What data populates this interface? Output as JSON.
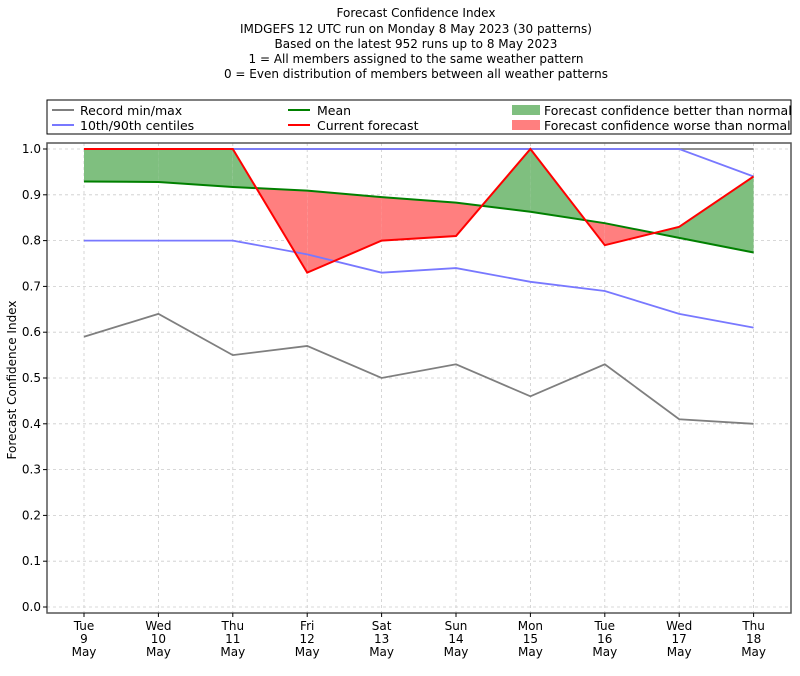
{
  "chart_data": {
    "type": "line",
    "title": "Forecast Confidence Index",
    "subtitle_lines": [
      "IMDGEFS 12 UTC run on Monday 8 May 2023 (30 patterns)",
      "Based on the latest 952 runs up to 8 May 2023",
      "1 = All members assigned to the same weather pattern",
      "0 = Even distribution of members between all weather patterns"
    ],
    "xlabel": "",
    "ylabel": "Forecast Confidence Index",
    "ylim": [
      0.0,
      1.0
    ],
    "yticks": [
      "0.0",
      "0.1",
      "0.2",
      "0.3",
      "0.4",
      "0.5",
      "0.6",
      "0.7",
      "0.8",
      "0.9",
      "1.0"
    ],
    "grid": true,
    "legend_position": "top (above plot, 3 columns)",
    "categories": [
      [
        "Tue",
        "9",
        "May"
      ],
      [
        "Wed",
        "10",
        "May"
      ],
      [
        "Thu",
        "11",
        "May"
      ],
      [
        "Fri",
        "12",
        "May"
      ],
      [
        "Sat",
        "13",
        "May"
      ],
      [
        "Sun",
        "14",
        "May"
      ],
      [
        "Mon",
        "15",
        "May"
      ],
      [
        "Tue",
        "16",
        "May"
      ],
      [
        "Wed",
        "17",
        "May"
      ],
      [
        "Thu",
        "18",
        "May"
      ]
    ],
    "series": [
      {
        "key": "record_max",
        "name": "Record min/max",
        "role": "record_max",
        "color": "#7f7f7f",
        "values": [
          1.0,
          1.0,
          1.0,
          1.0,
          1.0,
          1.0,
          1.0,
          1.0,
          1.0,
          1.0
        ]
      },
      {
        "key": "record_min",
        "name": "Record min/max",
        "role": "record_min",
        "color": "#7f7f7f",
        "values": [
          0.59,
          0.64,
          0.55,
          0.57,
          0.5,
          0.53,
          0.46,
          0.53,
          0.41,
          0.4
        ]
      },
      {
        "key": "p90",
        "name": "10th/90th centiles",
        "role": "p90",
        "color": "#7878ff",
        "values": [
          1.0,
          1.0,
          1.0,
          1.0,
          1.0,
          1.0,
          1.0,
          1.0,
          1.0,
          0.94
        ]
      },
      {
        "key": "p10",
        "name": "10th/90th centiles",
        "role": "p10",
        "color": "#7878ff",
        "values": [
          0.8,
          0.8,
          0.8,
          0.77,
          0.73,
          0.74,
          0.71,
          0.69,
          0.64,
          0.61
        ]
      },
      {
        "key": "mean",
        "name": "Mean",
        "role": "mean",
        "color": "#008000",
        "values": [
          0.929,
          0.928,
          0.917,
          0.909,
          0.895,
          0.883,
          0.863,
          0.838,
          0.806,
          0.774
        ]
      },
      {
        "key": "current",
        "name": "Current forecast",
        "role": "current",
        "color": "#ff0000",
        "values": [
          1.0,
          1.0,
          1.0,
          0.73,
          0.8,
          0.81,
          1.0,
          0.79,
          0.83,
          0.94
        ]
      }
    ],
    "fills": {
      "better": {
        "label": "Forecast confidence better than normal",
        "color": "#7fbf7f"
      },
      "worse": {
        "label": "Forecast confidence worse than normal",
        "color": "#ff7f7f"
      }
    },
    "legend": [
      {
        "label": "Record min/max",
        "kind": "line",
        "color": "#7f7f7f"
      },
      {
        "label": "10th/90th centiles",
        "kind": "line",
        "color": "#7878ff"
      },
      {
        "label": "Mean",
        "kind": "line",
        "color": "#008000"
      },
      {
        "label": "Current forecast",
        "kind": "line",
        "color": "#ff0000"
      },
      {
        "label": "Forecast confidence better than normal",
        "kind": "patch",
        "color": "#7fbf7f"
      },
      {
        "label": "Forecast confidence worse than normal",
        "kind": "patch",
        "color": "#ff7f7f"
      }
    ]
  }
}
